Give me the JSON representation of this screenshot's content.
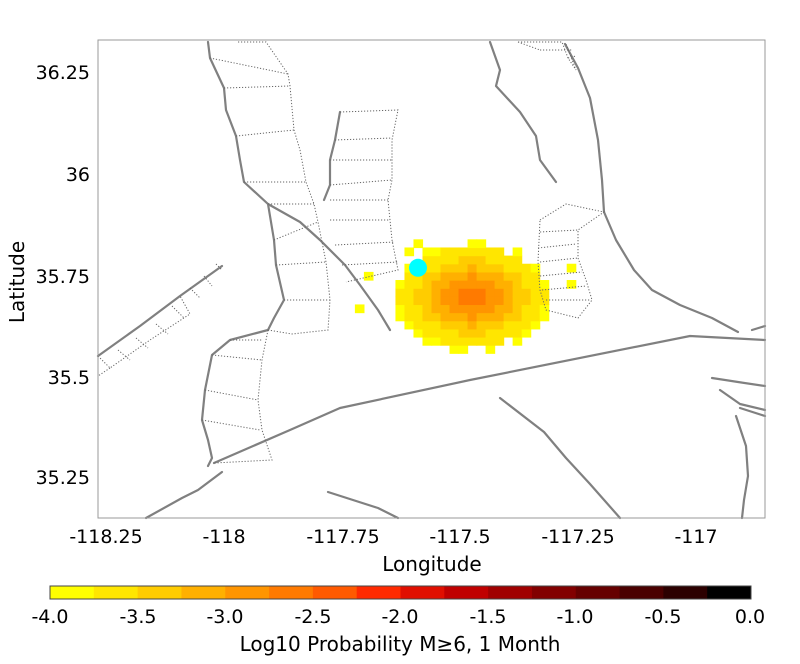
{
  "chart_data": {
    "type": "heatmap",
    "title": "",
    "xlabel": "Longitude",
    "ylabel": "Latitude",
    "xlim": [
      -118.32,
      -116.84
    ],
    "ylim": [
      35.155,
      36.33
    ],
    "x_ticks": [
      "-118.25",
      "-118",
      "-117.75",
      "-117.5",
      "-117.25",
      "-117"
    ],
    "y_ticks": [
      "36.25",
      "36",
      "35.75",
      "35.5",
      "35.25"
    ],
    "cell_size_deg": 0.02,
    "grid": false,
    "legend_placement": "bottom",
    "colorbar": {
      "label": "Log10 Probability M≥6, 1 Month",
      "min": -4.0,
      "max": 0.0,
      "ticks": [
        "-4.0",
        "-3.5",
        "-3.0",
        "-2.5",
        "-2.0",
        "-1.5",
        "-1.0",
        "-0.5",
        "0.0"
      ],
      "colors": [
        "#ffff00",
        "#ffe600",
        "#ffcc00",
        "#ffb000",
        "#ff9500",
        "#ff7a00",
        "#ff5a00",
        "#ff2a00",
        "#e00f00",
        "#c00000",
        "#a00000",
        "#820000",
        "#660000",
        "#4a0000",
        "#2c0000",
        "#000000"
      ]
    },
    "forecast": {
      "peak_lon": -117.49,
      "peak_lat": 35.7,
      "peak_log10_prob": -2.6,
      "base_log10_prob": -3.95,
      "extra_cells": [
        {
          "lon": -117.61,
          "lat": 35.83,
          "v": -3.95
        },
        {
          "lon": -117.63,
          "lat": 35.81,
          "v": -3.95
        },
        {
          "lon": -117.72,
          "lat": 35.75,
          "v": -3.95
        },
        {
          "lon": -117.74,
          "lat": 35.67,
          "v": -3.95
        },
        {
          "lon": -117.27,
          "lat": 35.77,
          "v": -3.95
        },
        {
          "lon": -117.27,
          "lat": 35.73,
          "v": -3.95
        }
      ]
    },
    "point_marker": {
      "lon": -117.61,
      "lat": 35.77,
      "color": "#00ffff"
    }
  }
}
